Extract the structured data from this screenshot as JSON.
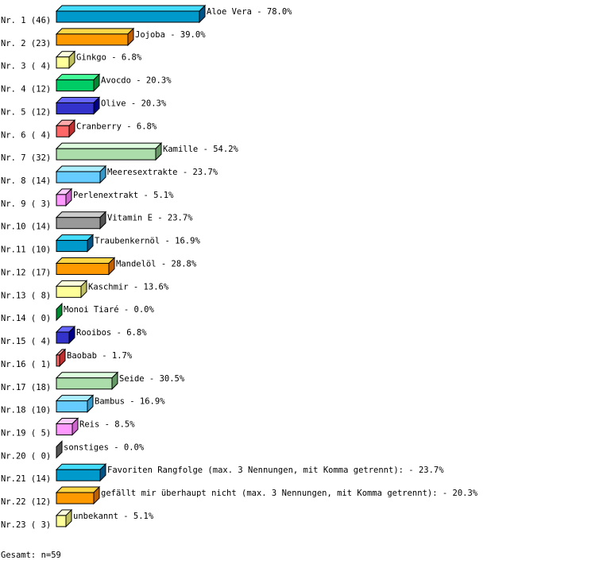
{
  "chart_data": {
    "type": "bar",
    "orientation": "horizontal",
    "style": "3d",
    "categories": [
      "Aloe Vera",
      "Jojoba",
      "Ginkgo",
      "Avocdo",
      "Olive",
      "Cranberry",
      "Kamille",
      "Meeresextrakte",
      "Perlenextrakt",
      "Vitamin E",
      "Traubenkernöl",
      "Mandelöl",
      "Kaschmir",
      "Monoi Tiaré",
      "Rooibos",
      "Baobab",
      "Seide",
      "Bambus",
      "Reis",
      "sonstiges",
      "Favoriten Rangfolge (max. 3 Nennungen, mit Komma getrennt):",
      "gefällt mir überhaupt nicht (max. 3 Nennungen, mit Komma getrennt):",
      "unbekannt"
    ],
    "row_labels": [
      "Nr. 1 (46)",
      "Nr. 2 (23)",
      "Nr. 3 ( 4)",
      "Nr. 4 (12)",
      "Nr. 5 (12)",
      "Nr. 6 ( 4)",
      "Nr. 7 (32)",
      "Nr. 8 (14)",
      "Nr. 9 ( 3)",
      "Nr.10 (14)",
      "Nr.11 (10)",
      "Nr.12 (17)",
      "Nr.13 ( 8)",
      "Nr.14 ( 0)",
      "Nr.15 ( 4)",
      "Nr.16 ( 1)",
      "Nr.17 (18)",
      "Nr.18 (10)",
      "Nr.19 ( 5)",
      "Nr.20 ( 0)",
      "Nr.21 (14)",
      "Nr.22 (12)",
      "Nr.23 ( 3)"
    ],
    "counts": [
      46,
      23,
      4,
      12,
      12,
      4,
      32,
      14,
      3,
      14,
      10,
      17,
      8,
      0,
      4,
      1,
      18,
      10,
      5,
      0,
      14,
      12,
      3
    ],
    "values": [
      78.0,
      39.0,
      6.8,
      20.3,
      20.3,
      6.8,
      54.2,
      23.7,
      5.1,
      23.7,
      16.9,
      28.8,
      13.6,
      0.0,
      6.8,
      1.7,
      30.5,
      16.9,
      8.5,
      0.0,
      23.7,
      20.3,
      5.1
    ],
    "value_labels": [
      "78.0%",
      "39.0%",
      "6.8%",
      "20.3%",
      "20.3%",
      "6.8%",
      "54.2%",
      "23.7%",
      "5.1%",
      "23.7%",
      "16.9%",
      "28.8%",
      "13.6%",
      "0.0%",
      "6.8%",
      "1.7%",
      "30.5%",
      "16.9%",
      "8.5%",
      "0.0%",
      "23.7%",
      "20.3%",
      "5.1%"
    ],
    "xlim": [
      0,
      100
    ],
    "grid": false,
    "palette": [
      {
        "front": "#0099cc",
        "top": "#44ddff",
        "side": "#005588"
      },
      {
        "front": "#ff9900",
        "top": "#ffd744",
        "side": "#c06000"
      },
      {
        "front": "#ffff99",
        "top": "#ffffdd",
        "side": "#c0c060"
      },
      {
        "front": "#00cc66",
        "top": "#44ff99",
        "side": "#008833"
      },
      {
        "front": "#3333cc",
        "top": "#6666ff",
        "side": "#000088"
      },
      {
        "front": "#ff6666",
        "top": "#ffaaaa",
        "side": "#c03030"
      },
      {
        "front": "#aaddaa",
        "top": "#ddffdd",
        "side": "#669966"
      },
      {
        "front": "#66ccff",
        "top": "#aaeeff",
        "side": "#3399cc"
      },
      {
        "front": "#ff99ff",
        "top": "#ffccff",
        "side": "#cc66cc"
      },
      {
        "front": "#999999",
        "top": "#cccccc",
        "side": "#555555"
      }
    ],
    "footer": "Gesamt: n=59"
  }
}
